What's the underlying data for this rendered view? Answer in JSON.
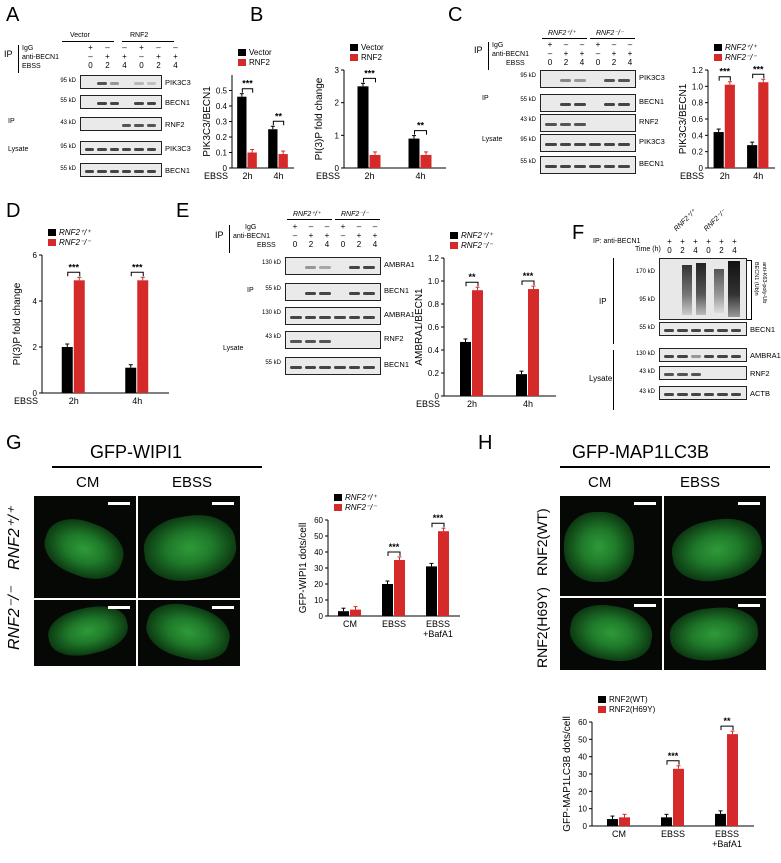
{
  "panels": {
    "A": {
      "label": "A",
      "blot": {
        "ip_label": "IP",
        "row_ip_lines": [
          "IgG",
          "anti-BECN1",
          "EBSS"
        ],
        "signs_igg": [
          "+",
          "–",
          "–",
          "–",
          "+",
          "–",
          "–",
          "–"
        ],
        "signs_anti": [
          "–",
          "+",
          "+",
          "+",
          "–",
          "+",
          "+",
          "+"
        ],
        "ebss": [
          "0",
          "2",
          "4",
          "0",
          "2",
          "4"
        ],
        "groups": [
          "Vector",
          "RNF2"
        ],
        "section_ip": "IP",
        "section_lysate": "Lysate",
        "rows": [
          {
            "mw": "95 kD",
            "name": "PIK3C3"
          },
          {
            "mw": "55 kD",
            "name": "BECN1"
          },
          {
            "mw": "43 kD",
            "name": "RNF2"
          },
          {
            "mw": "95 kD",
            "name": "PIK3C3"
          },
          {
            "mw": "55 kD",
            "name": "BECN1"
          }
        ]
      }
    },
    "B": {
      "label": "B"
    },
    "C": {
      "label": "C",
      "blot": {
        "groups": [
          "RNF2⁺/⁺",
          "RNF2⁻/⁻"
        ],
        "ip_label": "IP",
        "row_ip_lines": [
          "IgG",
          "anti-BECN1",
          "EBSS"
        ],
        "ebss": [
          "0",
          "2",
          "4",
          "0",
          "2",
          "4"
        ],
        "section_ip": "IP",
        "section_lysate": "Lysate",
        "rows": [
          {
            "mw": "95 kD",
            "name": "PIK3C3"
          },
          {
            "mw": "55 kD",
            "name": "BECN1"
          },
          {
            "mw": "43 kD",
            "name": "RNF2"
          },
          {
            "mw": "95 kD",
            "name": "PIK3C3"
          },
          {
            "mw": "55 kD",
            "name": "BECN1"
          }
        ]
      }
    },
    "D": {
      "label": "D"
    },
    "E": {
      "label": "E",
      "blot": {
        "groups": [
          "RNF2⁺/⁺",
          "RNF2⁻/⁻"
        ],
        "ip_label": "IP",
        "row_ip_lines": [
          "IgG",
          "anti-BECN1",
          "EBSS"
        ],
        "ebss": [
          "0",
          "2",
          "4",
          "0",
          "2",
          "4"
        ],
        "section_ip": "IP",
        "section_lysate": "Lysate",
        "rows": [
          {
            "mw": "130 kD",
            "name": "AMBRA1"
          },
          {
            "mw": "55 kD",
            "name": "BECN1"
          },
          {
            "mw": "130 kD",
            "name": "AMBRA1"
          },
          {
            "mw": "43 kD",
            "name": "RNF2"
          },
          {
            "mw": "55 kD",
            "name": "BECN1"
          }
        ]
      }
    },
    "F": {
      "label": "F",
      "blot": {
        "groups": [
          "RNF2⁺/⁺",
          "RNF2⁻/⁻"
        ],
        "top_line": "IP: anti-BECN1",
        "time_label": "Time (h)",
        "signs": [
          "+",
          "+",
          "+",
          "+",
          "+",
          "+"
        ],
        "times": [
          "0",
          "2",
          "4",
          "0",
          "2",
          "4"
        ],
        "section_ip": "IP",
        "section_lysate": "Lysate",
        "ub_label_1": "BECN1 (Ub)n",
        "ub_label_2": "anti-K63-poly-Ub",
        "rows": [
          {
            "mw": "170 kD",
            "name": ""
          },
          {
            "mw": "95 kD",
            "name": ""
          },
          {
            "mw": "55 kD",
            "name": "BECN1"
          },
          {
            "mw": "130 kD",
            "name": "AMBRA1"
          },
          {
            "mw": "43 kD",
            "name": "RNF2"
          },
          {
            "mw": "43 kD",
            "name": "ACTB"
          }
        ]
      }
    },
    "G": {
      "label": "G",
      "title": "GFP-WIPI1",
      "cols": [
        "CM",
        "EBSS"
      ],
      "rows": [
        "RNF2⁺/⁺",
        "RNF2⁻/⁻"
      ]
    },
    "H": {
      "label": "H",
      "title": "GFP-MAP1LC3B",
      "cols": [
        "CM",
        "EBSS"
      ],
      "rows": [
        "RNF2(WT)",
        "RNF2(H69Y)"
      ]
    }
  },
  "chart_data": [
    {
      "id": "A-chart",
      "type": "bar",
      "categories": [
        "2h",
        "4h"
      ],
      "xprefix": "EBSS",
      "series": [
        {
          "name": "Vector",
          "values": [
            0.46,
            0.25
          ],
          "color": "#000000"
        },
        {
          "name": "RNF2",
          "values": [
            0.1,
            0.09
          ],
          "color": "#d42a2a"
        }
      ],
      "ylabel": "PIK3C3/BECN1",
      "ylim": [
        0,
        0.6
      ],
      "yticks": [
        "0",
        "0.1",
        "0.2",
        "0.3",
        "0.4",
        "0.5"
      ],
      "sig": [
        "***",
        "**"
      ]
    },
    {
      "id": "B-chart",
      "type": "bar",
      "categories": [
        "2h",
        "4h"
      ],
      "xprefix": "EBSS",
      "series": [
        {
          "name": "Vector",
          "values": [
            2.5,
            0.9
          ],
          "color": "#000000"
        },
        {
          "name": "RNF2",
          "values": [
            0.4,
            0.4
          ],
          "color": "#d42a2a"
        }
      ],
      "ylabel": "PI(3)P fold change",
      "ylim": [
        0,
        3
      ],
      "yticks": [
        "0",
        "1",
        "2",
        "3"
      ],
      "sig": [
        "***",
        "**"
      ]
    },
    {
      "id": "C-chart",
      "type": "bar",
      "categories": [
        "2h",
        "4h"
      ],
      "xprefix": "EBSS",
      "series": [
        {
          "name": "RNF2⁺/⁺",
          "values": [
            0.44,
            0.28
          ],
          "color": "#000000"
        },
        {
          "name": "RNF2⁻/⁻",
          "values": [
            1.02,
            1.05
          ],
          "color": "#d42a2a"
        }
      ],
      "ylabel": "PIK3C3/BECN1",
      "ylim": [
        0,
        1.2
      ],
      "yticks": [
        "0",
        "0.2",
        "0.4",
        "0.6",
        "0.8",
        "1.0",
        "1.2"
      ],
      "sig": [
        "***",
        "***"
      ]
    },
    {
      "id": "D-chart",
      "type": "bar",
      "categories": [
        "2h",
        "4h"
      ],
      "xprefix": "EBSS",
      "series": [
        {
          "name": "RNF2⁺/⁺",
          "values": [
            2.0,
            1.1
          ],
          "color": "#000000"
        },
        {
          "name": "RNF2⁻/⁻",
          "values": [
            4.9,
            4.9
          ],
          "color": "#d42a2a"
        }
      ],
      "ylabel": "PI(3)P fold change",
      "ylim": [
        0,
        6
      ],
      "yticks": [
        "0",
        "2",
        "4",
        "6"
      ],
      "sig": [
        "***",
        "***"
      ]
    },
    {
      "id": "E-chart",
      "type": "bar",
      "categories": [
        "2h",
        "4h"
      ],
      "xprefix": "EBSS",
      "series": [
        {
          "name": "RNF2⁺/⁺",
          "values": [
            0.47,
            0.19
          ],
          "color": "#000000"
        },
        {
          "name": "RNF2⁻/⁻",
          "values": [
            0.92,
            0.93
          ],
          "color": "#d42a2a"
        }
      ],
      "ylabel": "AMBRA1/BECN1",
      "ylim": [
        0,
        1.2
      ],
      "yticks": [
        "0",
        "0.2",
        "0.4",
        "0.6",
        "0.8",
        "1.0",
        "1.2"
      ],
      "sig": [
        "**",
        "***"
      ]
    },
    {
      "id": "G-chart",
      "type": "bar",
      "categories": [
        "CM",
        "EBSS",
        "EBSS\n+BafA1"
      ],
      "xprefix": "",
      "series": [
        {
          "name": "RNF2⁺/⁺",
          "values": [
            3,
            20,
            31
          ],
          "color": "#000000"
        },
        {
          "name": "RNF2⁻/⁻",
          "values": [
            4,
            35,
            53
          ],
          "color": "#d42a2a"
        }
      ],
      "ylabel": "GFP-WIPI1 dots/cell",
      "ylim": [
        0,
        60
      ],
      "yticks": [
        "0",
        "10",
        "20",
        "30",
        "40",
        "50",
        "60"
      ],
      "sig": [
        "",
        "***",
        "***"
      ]
    },
    {
      "id": "H-chart",
      "type": "bar",
      "categories": [
        "CM",
        "EBSS",
        "EBSS\n+BafA1"
      ],
      "xprefix": "",
      "series": [
        {
          "name": "RNF2(WT)",
          "values": [
            4,
            5,
            7
          ],
          "color": "#000000"
        },
        {
          "name": "RNF2(H69Y)",
          "values": [
            5,
            33,
            53
          ],
          "color": "#d42a2a"
        }
      ],
      "ylabel": "GFP-MAP1LC3B dots/cell",
      "ylim": [
        0,
        60
      ],
      "yticks": [
        "0",
        "10",
        "20",
        "30",
        "40",
        "50",
        "60"
      ],
      "sig": [
        "",
        "***",
        "**"
      ]
    }
  ]
}
